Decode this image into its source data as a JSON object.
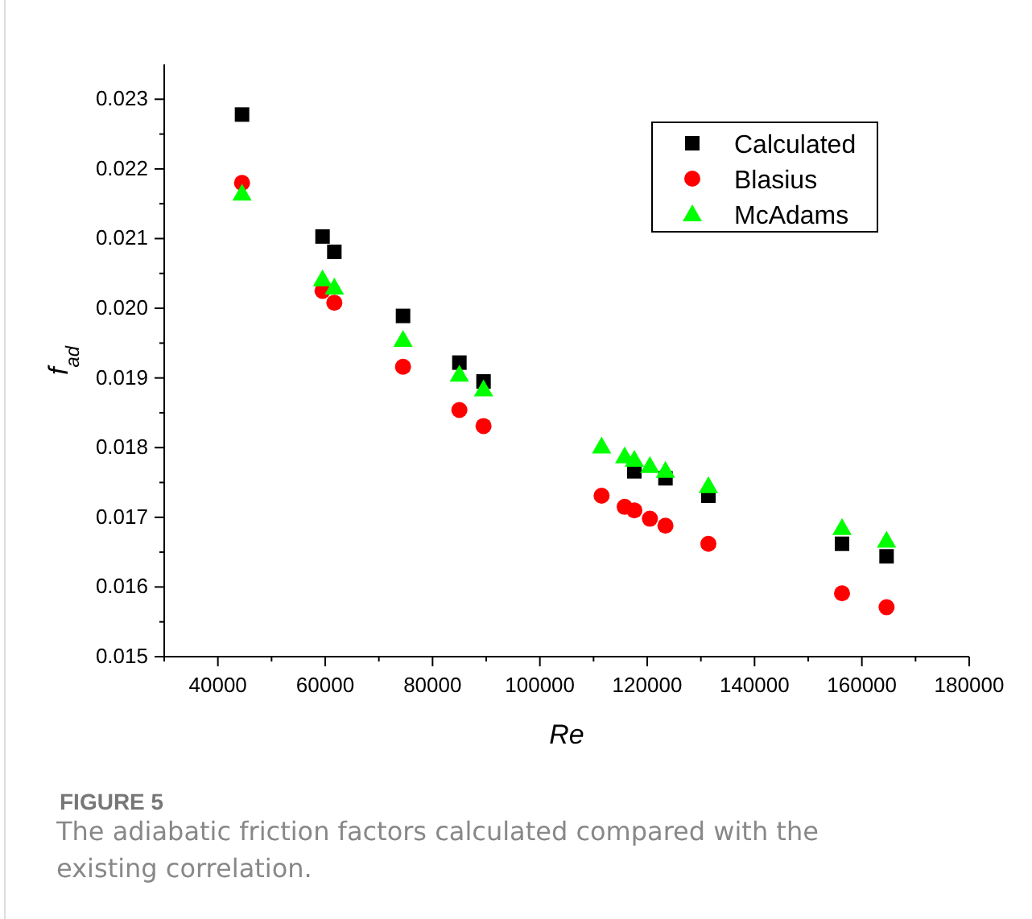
{
  "chart_data": {
    "type": "scatter",
    "title": "FIGURE 5",
    "subtitle": "The adiabatic friction factors calculated compared with the existing correlation.",
    "xlabel": "Re",
    "ylabel": "f$_{ad}$",
    "x": [
      44500,
      59500,
      61700,
      74500,
      85000,
      89500,
      111500,
      115800,
      117600,
      120500,
      123400,
      131400,
      156300,
      164600
    ],
    "series": [
      {
        "name": "Calculated",
        "color": "#000000",
        "marker": "square",
        "values": [
          0.02278,
          0.02103,
          0.02081,
          0.01989,
          0.01922,
          0.01895,
          null,
          null,
          0.01766,
          null,
          0.01756,
          0.01731,
          0.01662,
          0.01644
        ]
      },
      {
        "name": "Blasius",
        "color": "#ff0000",
        "marker": "circle",
        "values": [
          0.0218,
          0.02025,
          0.02008,
          0.01916,
          0.01854,
          0.01831,
          0.01731,
          0.01715,
          0.0171,
          0.01698,
          0.01688,
          0.01662,
          0.01591,
          0.01571
        ]
      },
      {
        "name": "McAdams",
        "color": "#00ff00",
        "marker": "triangle",
        "values": [
          0.02165,
          0.02042,
          0.0203,
          0.01955,
          0.01905,
          0.01884,
          0.01802,
          0.01788,
          0.01783,
          0.01774,
          0.01767,
          0.01745,
          0.01685,
          0.01667
        ]
      }
    ],
    "xlim": [
      30000,
      180000
    ],
    "xticks": [
      {
        "value": 30000,
        "label": null
      },
      40000,
      {
        "value": 50000,
        "label": null
      },
      60000,
      {
        "value": 70000,
        "label": null
      },
      80000,
      {
        "value": 90000,
        "label": null
      },
      100000,
      {
        "value": 110000,
        "label": null
      },
      120000,
      {
        "value": 130000,
        "label": null
      },
      140000,
      {
        "value": 150000,
        "label": null
      },
      160000,
      {
        "value": 170000,
        "label": null
      },
      180000
    ],
    "ylim": [
      0.015,
      0.0235
    ],
    "yticks": [
      {
        "value": 0.015,
        "label": "0.015"
      },
      {
        "value": 0.0155,
        "label": null
      },
      {
        "value": 0.016,
        "label": "0.016"
      },
      {
        "value": 0.0165,
        "label": null
      },
      {
        "value": 0.017,
        "label": "0.017"
      },
      {
        "value": 0.0175,
        "label": null
      },
      {
        "value": 0.018,
        "label": "0.018"
      },
      {
        "value": 0.0185,
        "label": null
      },
      {
        "value": 0.019,
        "label": "0.019"
      },
      {
        "value": 0.0195,
        "label": null
      },
      {
        "value": 0.02,
        "label": "0.020"
      },
      {
        "value": 0.0205,
        "label": null
      },
      {
        "value": 0.021,
        "label": "0.021"
      },
      {
        "value": 0.0215,
        "label": null
      },
      {
        "value": 0.022,
        "label": "0.022"
      },
      {
        "value": 0.0225,
        "label": null
      },
      {
        "value": 0.023,
        "label": "0.023"
      }
    ],
    "legend": "top right",
    "grid": false
  }
}
